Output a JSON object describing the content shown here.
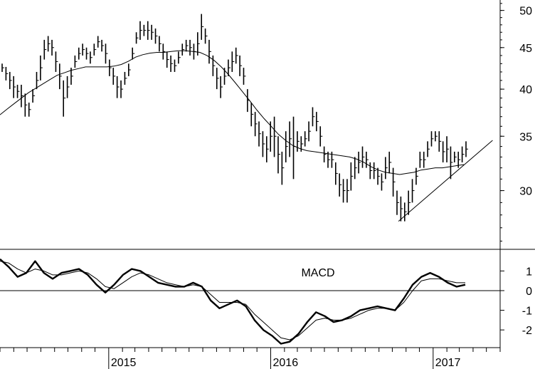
{
  "chart_data": [
    {
      "type": "ohlc",
      "title": "",
      "y_ticks": [
        30,
        35,
        40,
        45,
        50
      ],
      "ylim": [
        25.4,
        51.5
      ],
      "log_scale": true,
      "x_tick_labels": [
        "2015",
        "2016",
        "2017"
      ],
      "xlim": [
        "2014-05-01",
        "2017-06-01"
      ],
      "price_bars": [
        [
          43.0,
          42.0
        ],
        [
          42.6,
          41.0
        ],
        [
          42.0,
          40.0
        ],
        [
          41.5,
          39.0
        ],
        [
          40.5,
          39.0
        ],
        [
          40.5,
          38.0
        ],
        [
          39.5,
          37.0
        ],
        [
          38.5,
          37.0
        ],
        [
          40.0,
          38.5
        ],
        [
          42.0,
          40.0
        ],
        [
          44.0,
          41.0
        ],
        [
          46.0,
          43.5
        ],
        [
          46.5,
          44.5
        ],
        [
          46.0,
          44.0
        ],
        [
          44.5,
          42.0
        ],
        [
          43.0,
          40.0
        ],
        [
          41.0,
          37.0
        ],
        [
          41.5,
          39.0
        ],
        [
          42.5,
          40.5
        ],
        [
          44.0,
          42.5
        ],
        [
          45.0,
          43.5
        ],
        [
          45.5,
          44.0
        ],
        [
          45.0,
          43.5
        ],
        [
          44.5,
          43.0
        ],
        [
          45.5,
          44.0
        ],
        [
          46.5,
          45.0
        ],
        [
          46.0,
          44.5
        ],
        [
          45.5,
          43.0
        ],
        [
          43.5,
          41.5
        ],
        [
          42.5,
          40.5
        ],
        [
          41.5,
          39.0
        ],
        [
          41.0,
          39.0
        ],
        [
          42.0,
          40.5
        ],
        [
          43.0,
          41.5
        ],
        [
          45.0,
          43.5
        ],
        [
          47.0,
          45.5
        ],
        [
          48.5,
          46.0
        ],
        [
          48.0,
          46.5
        ],
        [
          48.5,
          46.0
        ],
        [
          48.0,
          46.0
        ],
        [
          47.5,
          45.5
        ],
        [
          46.5,
          44.5
        ],
        [
          45.5,
          43.5
        ],
        [
          44.5,
          42.5
        ],
        [
          44.0,
          42.0
        ],
        [
          43.5,
          42.0
        ],
        [
          44.5,
          43.0
        ],
        [
          45.5,
          44.0
        ],
        [
          46.0,
          44.5
        ],
        [
          46.0,
          44.0
        ],
        [
          45.5,
          43.5
        ],
        [
          47.0,
          44.0
        ],
        [
          49.5,
          46.0
        ],
        [
          47.5,
          45.5
        ],
        [
          46.0,
          43.0
        ],
        [
          44.0,
          41.5
        ],
        [
          42.5,
          40.0
        ],
        [
          41.5,
          39.0
        ],
        [
          42.5,
          40.5
        ],
        [
          43.5,
          41.5
        ],
        [
          44.5,
          42.0
        ],
        [
          45.0,
          43.0
        ],
        [
          44.0,
          41.5
        ],
        [
          42.5,
          40.5
        ],
        [
          40.0,
          37.5
        ],
        [
          38.5,
          36.0
        ],
        [
          37.5,
          35.0
        ],
        [
          36.5,
          34.0
        ],
        [
          35.5,
          33.0
        ],
        [
          35.0,
          32.5
        ],
        [
          36.5,
          33.5
        ],
        [
          37.0,
          33.0
        ],
        [
          35.0,
          31.5
        ],
        [
          33.5,
          30.5
        ],
        [
          35.5,
          32.5
        ],
        [
          36.5,
          33.0
        ],
        [
          37.0,
          31.0
        ],
        [
          35.5,
          33.5
        ],
        [
          35.0,
          33.5
        ],
        [
          35.5,
          34.0
        ],
        [
          36.5,
          34.5
        ],
        [
          38.0,
          36.0
        ],
        [
          37.5,
          35.5
        ],
        [
          36.0,
          34.0
        ],
        [
          34.0,
          32.5
        ],
        [
          33.5,
          32.0
        ],
        [
          33.5,
          32.0
        ],
        [
          32.5,
          30.5
        ],
        [
          31.5,
          29.5
        ],
        [
          31.0,
          29.0
        ],
        [
          31.0,
          29.0
        ],
        [
          32.5,
          30.0
        ],
        [
          33.0,
          31.0
        ],
        [
          33.5,
          31.5
        ],
        [
          34.0,
          32.0
        ],
        [
          33.5,
          32.0
        ],
        [
          32.5,
          31.0
        ],
        [
          32.5,
          31.0
        ],
        [
          32.0,
          30.5
        ],
        [
          31.5,
          30.0
        ],
        [
          33.0,
          31.0
        ],
        [
          33.5,
          31.5
        ],
        [
          32.0,
          29.5
        ],
        [
          30.0,
          28.0
        ],
        [
          29.5,
          27.5
        ],
        [
          29.0,
          27.5
        ],
        [
          30.0,
          28.0
        ],
        [
          31.0,
          29.0
        ],
        [
          32.0,
          30.5
        ],
        [
          33.5,
          32.0
        ],
        [
          33.5,
          32.0
        ],
        [
          34.5,
          33.0
        ],
        [
          35.5,
          34.0
        ],
        [
          35.5,
          34.5
        ],
        [
          35.5,
          33.5
        ],
        [
          34.5,
          32.5
        ],
        [
          35.0,
          32.5
        ],
        [
          34.0,
          31.0
        ],
        [
          33.5,
          32.5
        ],
        [
          33.5,
          32.0
        ],
        [
          34.0,
          32.5
        ],
        [
          34.5,
          33.0
        ]
      ],
      "moving_average": [
        37.2,
        37.8,
        38.4,
        39.0,
        39.6,
        40.1,
        40.6,
        41.1,
        41.6,
        41.9,
        42.2,
        42.4,
        42.6,
        42.6,
        42.6,
        42.6,
        42.7,
        42.9,
        43.3,
        43.8,
        44.1,
        44.3,
        44.4,
        44.4,
        44.5,
        44.6,
        44.6,
        44.5,
        44.4,
        44.0,
        43.4,
        42.6,
        41.7,
        40.7,
        39.7,
        38.7,
        37.7,
        36.8,
        36.0,
        35.2,
        34.6,
        34.1,
        33.8,
        33.6,
        33.5,
        33.4,
        33.3,
        33.2,
        33.1,
        33.0,
        32.8,
        32.5,
        32.1,
        31.8,
        31.6,
        31.5,
        31.4,
        31.5,
        31.6,
        31.8,
        31.9,
        32.0,
        32.0,
        32.1,
        32.2,
        32.3
      ],
      "trendline": {
        "start": [
          "2016-10-15",
          27.5
        ],
        "end": [
          "2017-05-15",
          34.6
        ]
      }
    },
    {
      "type": "line",
      "label": "MACD",
      "y_ticks": [
        1,
        0,
        -1,
        -2
      ],
      "ylim": [
        -2.9,
        2.1
      ],
      "zero_line": true,
      "macd_values": [
        1.6,
        1.2,
        0.7,
        0.9,
        1.5,
        0.9,
        0.6,
        0.9,
        1.0,
        1.1,
        0.8,
        0.3,
        -0.1,
        0.3,
        0.8,
        1.1,
        1.0,
        0.7,
        0.4,
        0.3,
        0.2,
        0.2,
        0.4,
        0.2,
        -0.5,
        -0.9,
        -0.7,
        -0.5,
        -0.8,
        -1.5,
        -2.0,
        -2.3,
        -2.7,
        -2.6,
        -2.2,
        -1.6,
        -1.1,
        -1.3,
        -1.6,
        -1.5,
        -1.3,
        -1.0,
        -0.9,
        -0.8,
        -0.9,
        -1.0,
        -0.4,
        0.3,
        0.7,
        0.9,
        0.7,
        0.4,
        0.2,
        0.3
      ],
      "signal_values": [
        1.5,
        1.4,
        1.1,
        0.9,
        1.1,
        1.0,
        0.8,
        0.8,
        0.9,
        1.0,
        0.9,
        0.6,
        0.2,
        0.1,
        0.4,
        0.7,
        0.9,
        0.8,
        0.6,
        0.4,
        0.3,
        0.2,
        0.3,
        0.2,
        -0.2,
        -0.6,
        -0.6,
        -0.6,
        -0.7,
        -1.2,
        -1.6,
        -2.0,
        -2.4,
        -2.5,
        -2.3,
        -1.9,
        -1.5,
        -1.4,
        -1.5,
        -1.5,
        -1.4,
        -1.2,
        -1.0,
        -0.9,
        -0.9,
        -1.0,
        -0.6,
        0.0,
        0.5,
        0.6,
        0.6,
        0.5,
        0.4,
        0.4
      ]
    }
  ],
  "colors": {
    "line": "#000000",
    "background": "#ffffff"
  }
}
